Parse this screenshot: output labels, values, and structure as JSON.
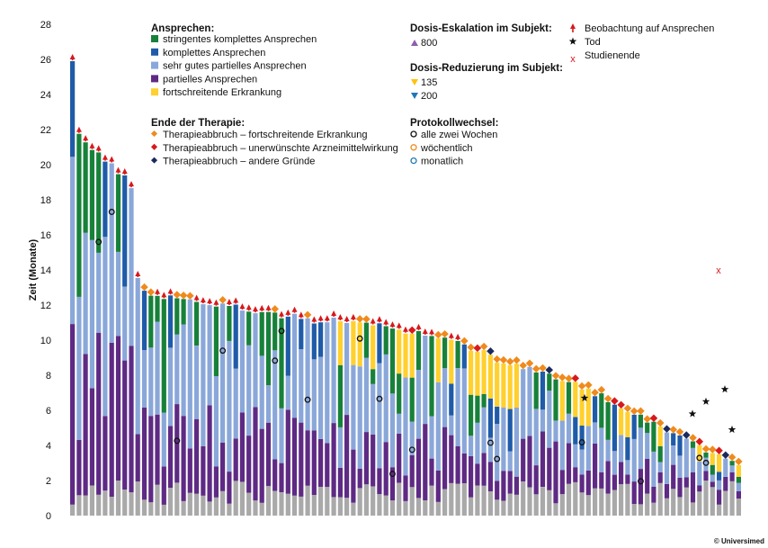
{
  "chart_data": {
    "type": "bar",
    "stacked": true,
    "ylabel": "Zeit (Monate)",
    "ylim": [
      0,
      28
    ],
    "yticks": [
      0,
      2,
      4,
      6,
      8,
      10,
      12,
      14,
      16,
      18,
      20,
      22,
      24,
      26,
      28
    ],
    "grid": false,
    "bar_count": 103,
    "copyright": "© Universimed",
    "colors": {
      "sCR": "#17813a",
      "CR": "#1f5ba8",
      "VGPR": "#8aa7d9",
      "PR": "#5e2a84",
      "PD": "#ffd02e",
      "baseline": "#a9a9a9",
      "pd_end": "#f08a1c",
      "ae_end": "#d7191c",
      "other_end": "#1b2a5e",
      "obs_arrow": "#d7191c",
      "escalation": "#8e5db0",
      "red135": "#ffc20e",
      "red200": "#1f78b4",
      "wk": "#f08a1c",
      "mo": "#1f78b4",
      "q2w": "#111111",
      "x_mark": "#d7191c"
    },
    "legend": {
      "response_title": "Ansprechen:",
      "response_items": [
        {
          "key": "sCR",
          "label": "stringentes komplettes Ansprechen"
        },
        {
          "key": "CR",
          "label": "komplettes Ansprechen"
        },
        {
          "key": "VGPR",
          "label": "sehr gutes partielles Ansprechen"
        },
        {
          "key": "PR",
          "label": "partielles Ansprechen"
        },
        {
          "key": "PD",
          "label": "fortschreitende Erkrankung"
        }
      ],
      "end_title": "Ende der Therapie:",
      "end_items": [
        {
          "key": "pd_end",
          "label": "Therapieabbruch – fortschreitende Erkrankung"
        },
        {
          "key": "ae_end",
          "label": "Therapieabbruch – unerwünschte Arzneimittelwirkung"
        },
        {
          "key": "other_end",
          "label": "Therapieabbruch – andere Gründe"
        }
      ],
      "esc_title": "Dosis-Eskalation im Subjekt:",
      "esc_item": "800",
      "red_title": "Dosis-Reduzierung im Subjekt:",
      "red_items": [
        "135",
        "200"
      ],
      "proto_title": "Protokollwechsel:",
      "proto_items": [
        {
          "key": "q2w",
          "label": "alle zwei Wochen"
        },
        {
          "key": "wk",
          "label": "wöchentlich"
        },
        {
          "key": "mo",
          "label": "monatlich"
        }
      ],
      "other_items": [
        {
          "key": "obs",
          "label": "Beobachtung auf Ansprechen"
        },
        {
          "key": "death",
          "label": "Tod"
        },
        {
          "key": "end",
          "label": "Studienende"
        }
      ]
    }
  }
}
